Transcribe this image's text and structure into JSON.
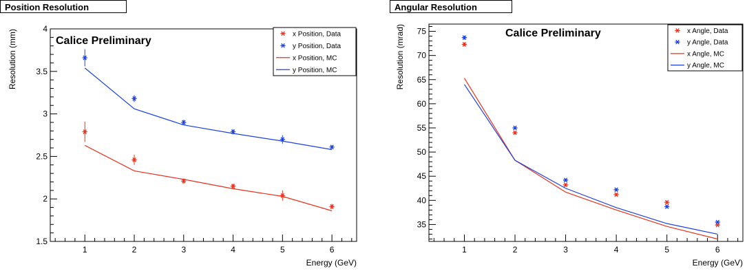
{
  "chart_data": [
    {
      "type": "line",
      "title": "Position Resolution",
      "annotation": "Calice Preliminary",
      "xlabel": "Energy (GeV)",
      "ylabel": "Resolution (mm)",
      "xlim": [
        0.3,
        6.5
      ],
      "ylim": [
        1.5,
        4.0
      ],
      "xticks": [
        "1",
        "2",
        "3",
        "4",
        "5",
        "6"
      ],
      "yticks": [
        "1.5",
        "2",
        "2.5",
        "3",
        "3.5",
        "4"
      ],
      "legend_position": "top-right",
      "series": [
        {
          "name": "x Position, Data",
          "kind": "points",
          "color": "#e8301c",
          "x": [
            1,
            2,
            3,
            4,
            5,
            6
          ],
          "y": [
            2.79,
            2.46,
            2.21,
            2.15,
            2.04,
            1.91
          ],
          "err": [
            0.12,
            0.06,
            0.03,
            0.03,
            0.06,
            0.03
          ]
        },
        {
          "name": "y Position, Data",
          "kind": "points",
          "color": "#1c40e0",
          "x": [
            1,
            2,
            3,
            4,
            5,
            6
          ],
          "y": [
            3.66,
            3.18,
            2.9,
            2.79,
            2.7,
            2.61
          ],
          "err": [
            0.1,
            0.04,
            0.03,
            0.03,
            0.05,
            0.02
          ]
        },
        {
          "name": "x Position, MC",
          "kind": "line",
          "color": "#e8301c",
          "x": [
            1,
            2,
            3,
            4,
            5,
            6
          ],
          "y": [
            2.63,
            2.33,
            2.23,
            2.12,
            2.03,
            1.86
          ]
        },
        {
          "name": "y Position, MC",
          "kind": "line",
          "color": "#1c40e0",
          "x": [
            1,
            2,
            3,
            4,
            5,
            6
          ],
          "y": [
            3.54,
            3.06,
            2.87,
            2.77,
            2.68,
            2.58
          ]
        }
      ]
    },
    {
      "type": "line",
      "title": "Angular Resolution",
      "annotation": "Calice Preliminary",
      "xlabel": "Energy (GeV)",
      "ylabel": "Resolution (mrad)",
      "xlim": [
        0.3,
        6.5
      ],
      "ylim": [
        31.5,
        76.5
      ],
      "xticks": [
        "1",
        "2",
        "3",
        "4",
        "5",
        "6"
      ],
      "yticks": [
        "35",
        "40",
        "45",
        "50",
        "55",
        "60",
        "65",
        "70",
        "75"
      ],
      "legend_position": "top-right",
      "series": [
        {
          "name": "x Angle, Data",
          "kind": "points",
          "color": "#e8301c",
          "x": [
            1,
            2,
            3,
            4,
            5,
            6
          ],
          "y": [
            72.3,
            54.0,
            43.2,
            41.2,
            39.6,
            34.9
          ],
          "err": [
            0.4,
            0.3,
            0.3,
            0.3,
            0.3,
            0.2
          ]
        },
        {
          "name": "y Angle, Data",
          "kind": "points",
          "color": "#1c40e0",
          "x": [
            1,
            2,
            3,
            4,
            5,
            6
          ],
          "y": [
            73.7,
            55.0,
            44.2,
            42.2,
            38.7,
            35.5
          ],
          "err": [
            0.4,
            0.3,
            0.3,
            0.3,
            0.3,
            0.2
          ]
        },
        {
          "name": "x Angle, MC",
          "kind": "line",
          "color": "#e8301c",
          "x": [
            1,
            2,
            3,
            4,
            5,
            6
          ],
          "y": [
            65.3,
            48.3,
            41.7,
            38.0,
            34.6,
            32.0
          ]
        },
        {
          "name": "y Angle, MC",
          "kind": "line",
          "color": "#1c40e0",
          "x": [
            1,
            2,
            3,
            4,
            5,
            6
          ],
          "y": [
            64.0,
            48.3,
            42.5,
            38.5,
            35.2,
            33.0
          ]
        }
      ]
    }
  ]
}
